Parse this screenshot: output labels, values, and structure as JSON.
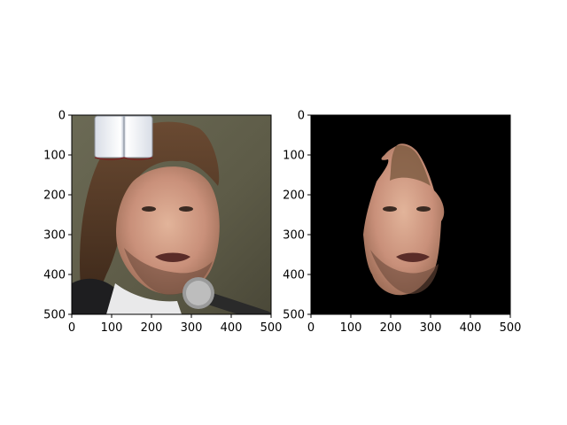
{
  "figure": {
    "panels": [
      {
        "id": "left",
        "description_tag": "original-image-with-overlay"
      },
      {
        "id": "right",
        "description_tag": "segmented-face-mask"
      }
    ]
  },
  "colors": {
    "frame": "#000000",
    "mask_background": "#000000",
    "photo_background": "#5f5d48"
  },
  "chart_data": [
    {
      "type": "image",
      "title": "",
      "xlabel": "",
      "ylabel": "",
      "xlim": [
        0,
        500
      ],
      "ylim": [
        500,
        0
      ],
      "xticks": [
        "0",
        "100",
        "200",
        "300",
        "400",
        "500"
      ],
      "yticks": [
        "0",
        "100",
        "200",
        "300",
        "400",
        "500"
      ],
      "content": "photo-of-face-with-book-overlay"
    },
    {
      "type": "image",
      "title": "",
      "xlabel": "",
      "ylabel": "",
      "xlim": [
        0,
        500
      ],
      "ylim": [
        500,
        0
      ],
      "xticks": [
        "0",
        "100",
        "200",
        "300",
        "400",
        "500"
      ],
      "yticks": [
        "0",
        "100",
        "200",
        "300",
        "400",
        "500"
      ],
      "content": "face-region-on-black-background"
    }
  ]
}
